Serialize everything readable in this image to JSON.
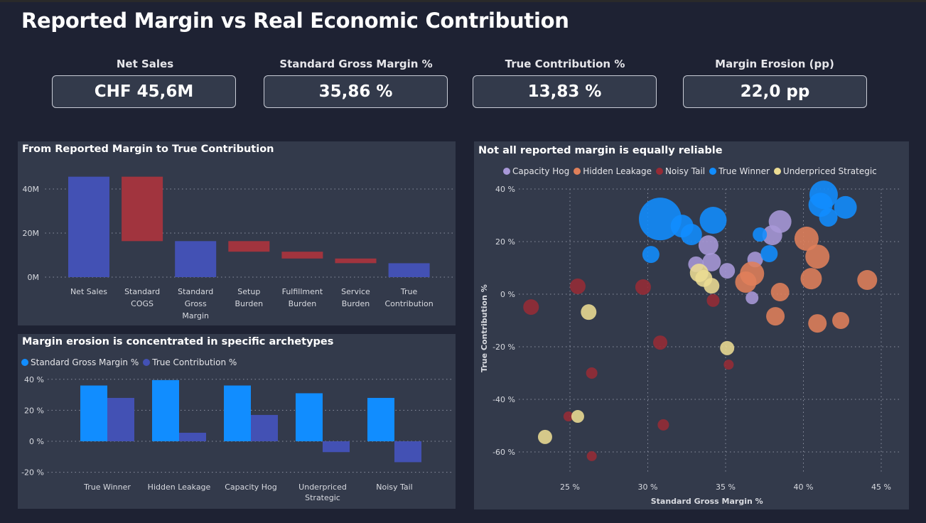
{
  "title": "Reported Margin vs Real Economic Contribution",
  "kpis": [
    {
      "label": "Net Sales",
      "value": "CHF 45,6M"
    },
    {
      "label": "Standard Gross Margin %",
      "value": "35,86 %"
    },
    {
      "label": "True Contribution %",
      "value": "13,83 %"
    },
    {
      "label": "Margin Erosion (pp)",
      "value": "22,0 pp"
    }
  ],
  "colors": {
    "total": "#4351b4",
    "decrease": "#a1343e",
    "sgm": "#118dff",
    "tc": "#4351b4",
    "Capacity Hog": "#a898d8",
    "Hidden Leakage": "#e0805a",
    "Noisy Tail": "#962b35",
    "True Winner": "#118dff",
    "Underpriced Strategic": "#ecdc93"
  },
  "chart_data": [
    {
      "type": "waterfall",
      "title": "From Reported Margin to True Contribution",
      "categories": [
        "Net Sales",
        "Standard COGS",
        "Standard Gross Margin",
        "Setup Burden",
        "Fulfillment Burden",
        "Service Burden",
        "True Contribution"
      ],
      "category_lines": [
        [
          "Net Sales"
        ],
        [
          "Standard",
          "COGS"
        ],
        [
          "Standard",
          "Gross",
          "Margin"
        ],
        [
          "Setup",
          "Burden"
        ],
        [
          "Fulfillment",
          "Burden"
        ],
        [
          "Service",
          "Burden"
        ],
        [
          "True",
          "Contribution"
        ]
      ],
      "kinds": [
        "total",
        "decrease",
        "total",
        "decrease",
        "decrease",
        "decrease",
        "total"
      ],
      "values_m": [
        45.6,
        -29.25,
        16.35,
        -4.8,
        -3.1,
        -2.1,
        6.31
      ],
      "ylim": [
        0,
        48
      ],
      "yticks": [
        0,
        20,
        40
      ],
      "ytick_labels": [
        "0M",
        "20M",
        "40M"
      ],
      "grid": true
    },
    {
      "type": "bar",
      "title": "Margin erosion is concentrated in specific archetypes",
      "categories": [
        "True Winner",
        "Hidden Leakage",
        "Capacity Hog",
        "Underpriced Strategic",
        "Noisy Tail"
      ],
      "category_lines": [
        [
          "True Winner"
        ],
        [
          "Hidden Leakage"
        ],
        [
          "Capacity Hog"
        ],
        [
          "Underpriced",
          "Strategic"
        ],
        [
          "Noisy Tail"
        ]
      ],
      "series": [
        {
          "name": "Standard Gross Margin %",
          "values": [
            36,
            39.5,
            36,
            31,
            28
          ]
        },
        {
          "name": "True Contribution %",
          "values": [
            28,
            5.5,
            17,
            -7,
            -13.5
          ]
        }
      ],
      "ylim": [
        -25,
        42
      ],
      "yticks": [
        -20,
        0,
        20,
        40
      ],
      "ytick_labels": [
        "-20 %",
        "0 %",
        "20 %",
        "40 %"
      ],
      "legend": "top-left",
      "grid": true
    },
    {
      "type": "scatter",
      "title": "Not all reported margin is equally reliable",
      "xlabel": "Standard Gross Margin %",
      "ylabel": "True Contribution %",
      "xlim": [
        22,
        46
      ],
      "ylim": [
        -68,
        40
      ],
      "xticks": [
        25,
        30,
        35,
        40,
        45
      ],
      "xtick_labels": [
        "25 %",
        "30 %",
        "35 %",
        "40 %",
        "45 %"
      ],
      "yticks": [
        -60,
        -40,
        -20,
        0,
        20,
        40
      ],
      "ytick_labels": [
        "-60 %",
        "-40 %",
        "-20 %",
        "0 %",
        "20 %",
        "40 %"
      ],
      "legend": "top",
      "grid": true,
      "series": [
        {
          "name": "Capacity Hog",
          "points": [
            [
              38.5,
              27.6,
              16
            ],
            [
              38.0,
              22.4,
              14
            ],
            [
              33.9,
              18.6,
              14
            ],
            [
              33.1,
              11.4,
              11
            ],
            [
              34.1,
              12.2,
              13
            ],
            [
              35.1,
              8.9,
              11
            ],
            [
              36.9,
              13.2,
              11
            ],
            [
              36.7,
              -1.4,
              9
            ]
          ]
        },
        {
          "name": "Hidden Leakage",
          "points": [
            [
              40.2,
              21.1,
              17
            ],
            [
              40.9,
              14.3,
              17
            ],
            [
              36.7,
              7.8,
              17
            ],
            [
              36.3,
              4.6,
              15
            ],
            [
              40.5,
              5.9,
              15
            ],
            [
              44.1,
              5.4,
              14
            ],
            [
              38.5,
              0.8,
              13
            ],
            [
              38.2,
              -8.4,
              13
            ],
            [
              40.9,
              -11.1,
              13
            ],
            [
              42.4,
              -10.0,
              12
            ]
          ]
        },
        {
          "name": "Noisy Tail",
          "points": [
            [
              22.5,
              -4.9,
              11
            ],
            [
              25.5,
              3.0,
              11
            ],
            [
              29.7,
              2.7,
              11
            ],
            [
              34.2,
              -2.4,
              9
            ],
            [
              30.8,
              -18.4,
              10
            ],
            [
              35.2,
              -26.8,
              7
            ],
            [
              26.4,
              -30.0,
              8
            ],
            [
              24.9,
              -46.5,
              7
            ],
            [
              31.0,
              -49.7,
              8
            ],
            [
              26.4,
              -61.6,
              7
            ]
          ]
        },
        {
          "name": "True Winner",
          "points": [
            [
              30.8,
              28.6,
              30
            ],
            [
              32.2,
              25.9,
              16
            ],
            [
              32.8,
              22.7,
              15
            ],
            [
              34.2,
              28.1,
              19
            ],
            [
              30.2,
              15.1,
              12
            ],
            [
              37.2,
              22.7,
              10
            ],
            [
              37.8,
              15.4,
              12
            ],
            [
              41.3,
              37.8,
              20
            ],
            [
              41.1,
              34.0,
              17
            ],
            [
              42.7,
              33.0,
              16
            ],
            [
              41.6,
              29.2,
              13
            ]
          ]
        },
        {
          "name": "Underpriced Strategic",
          "points": [
            [
              26.2,
              -6.8,
              11
            ],
            [
              33.3,
              8.1,
              13
            ],
            [
              33.6,
              6.0,
              12
            ],
            [
              34.1,
              3.2,
              11
            ],
            [
              35.1,
              -20.5,
              10
            ],
            [
              25.5,
              -46.5,
              9
            ],
            [
              23.4,
              -54.3,
              10
            ]
          ]
        }
      ]
    }
  ]
}
